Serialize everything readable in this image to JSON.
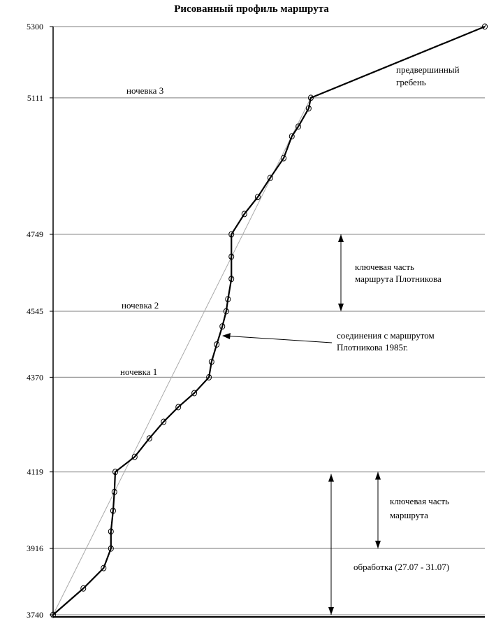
{
  "chart_data": {
    "type": "line",
    "title": "Рисованный профиль маршрута",
    "xlabel": "",
    "ylabel": "",
    "ylim": [
      3740,
      5300
    ],
    "xlim": [
      0,
      100
    ],
    "grid": true,
    "y_ticks": [
      5300,
      5111,
      4749,
      4545,
      4370,
      4119,
      3916,
      3740
    ],
    "series": [
      {
        "marker": "circle",
        "color": "#000000",
        "points": [
          [
            0,
            3740
          ],
          [
            7.0,
            3810
          ],
          [
            11.7,
            3864
          ],
          [
            13.4,
            3916
          ],
          [
            13.4,
            3961
          ],
          [
            13.9,
            4016
          ],
          [
            14.2,
            4066
          ],
          [
            14.4,
            4119
          ],
          [
            18.9,
            4159
          ],
          [
            22.3,
            4208
          ],
          [
            25.6,
            4252
          ],
          [
            29.0,
            4291
          ],
          [
            32.7,
            4328
          ],
          [
            36.1,
            4370
          ],
          [
            36.7,
            4411
          ],
          [
            37.9,
            4457
          ],
          [
            39.2,
            4505
          ],
          [
            40.1,
            4545
          ],
          [
            40.5,
            4577
          ],
          [
            41.3,
            4631
          ],
          [
            41.3,
            4690
          ],
          [
            41.3,
            4749
          ],
          [
            44.3,
            4803
          ],
          [
            47.4,
            4848
          ],
          [
            50.3,
            4899
          ],
          [
            53.4,
            4951
          ],
          [
            55.3,
            5009
          ],
          [
            56.8,
            5035
          ],
          [
            59.2,
            5083
          ],
          [
            59.7,
            5111
          ],
          [
            100,
            5300
          ]
        ]
      },
      {
        "color": "#aaaaaa",
        "points": [
          [
            0,
            3740
          ],
          [
            59.7,
            5111
          ]
        ]
      }
    ],
    "annotations": {
      "camp3": "ночевка 3",
      "camp2": "ночевка 2",
      "camp1": "ночевка 1",
      "ridge": [
        "предвершинный",
        "гребень"
      ],
      "key_plotnikov": [
        "ключевая часть",
        "маршрута Плотникова"
      ],
      "junction": [
        "соединения с маршрутом",
        "Плотникова 1985г."
      ],
      "key_route": [
        "ключевая часть",
        "маршрута"
      ],
      "processing": "обработка (27.07 - 31.07)"
    }
  }
}
